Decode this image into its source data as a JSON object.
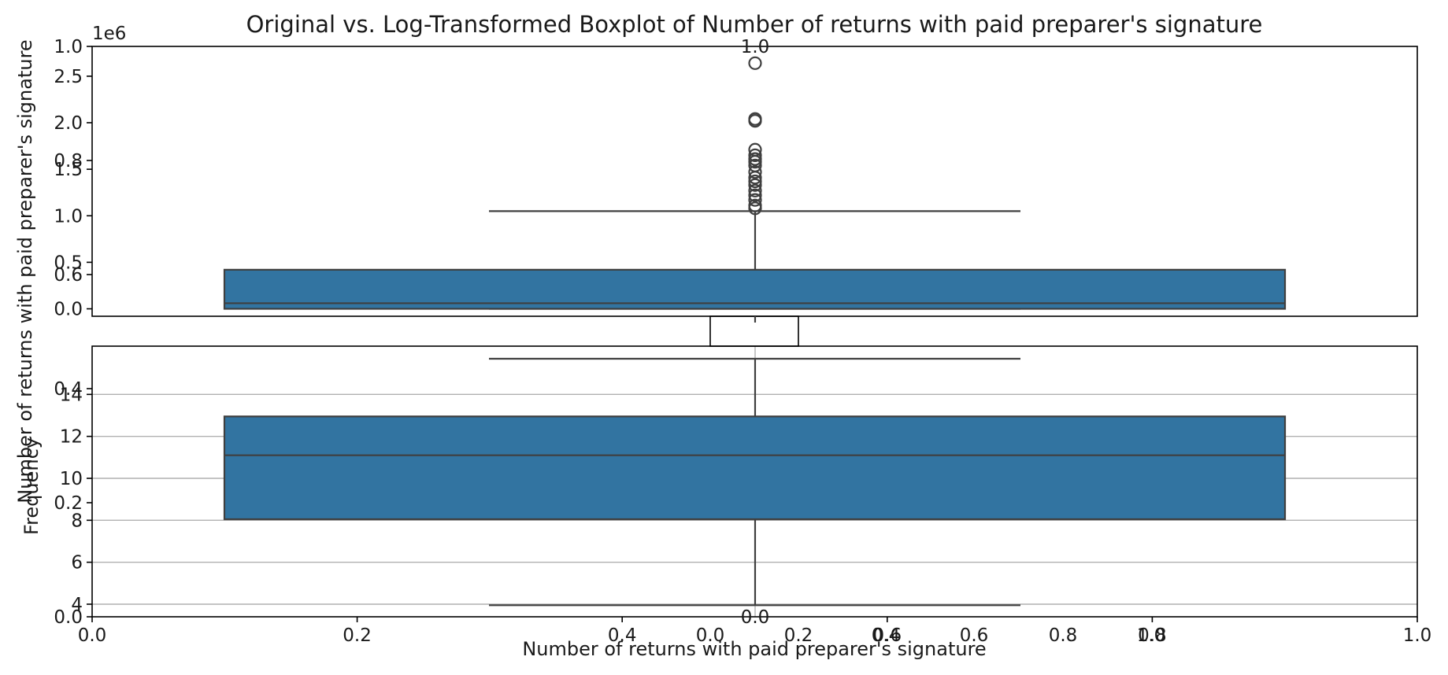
{
  "chart_data": [
    {
      "type": "boxplot",
      "panel": "top",
      "title": "Original vs. Log-Transformed Boxplot of Number of returns with paid preparer's signature",
      "ylabel": "Number of returns with paid preparer's signature",
      "y_offset_label": "1e6",
      "ylim": [
        -0.08,
        2.82
      ],
      "yticks": [
        0.0,
        0.5,
        1.0,
        1.5,
        2.0,
        2.5
      ],
      "ytick_labels": [
        "0.0",
        "0.5",
        "1.0",
        "1.5",
        "2.0",
        "2.5"
      ],
      "box": {
        "q1": 0.0,
        "median": 0.06,
        "q3": 0.42,
        "whisker_low": 0.0,
        "whisker_high": 1.05
      },
      "fliers": [
        1.08,
        1.11,
        1.17,
        1.22,
        1.27,
        1.33,
        1.37,
        1.41,
        1.47,
        1.54,
        1.58,
        1.61,
        1.65,
        1.71,
        2.02,
        2.04,
        2.64
      ]
    },
    {
      "type": "boxplot",
      "panel": "bottom",
      "ylabel": "Frequency",
      "xlabel": "Number of returns with paid preparer's signature",
      "ylim": [
        3.4,
        16.3
      ],
      "yticks": [
        4,
        6,
        8,
        10,
        12,
        14
      ],
      "ytick_labels": [
        "4",
        "6",
        "8",
        "10",
        "12",
        "14"
      ],
      "grid": true,
      "box": {
        "q1": 8.05,
        "median": 11.1,
        "q3": 12.95,
        "whisker_low": 3.95,
        "whisker_high": 15.7
      }
    },
    {
      "type": "axes-overlay",
      "panel": "background",
      "xlim": [
        0.0,
        1.0
      ],
      "ylim": [
        0.0,
        1.0
      ],
      "xticks": [
        0.0,
        0.2,
        0.4,
        0.6,
        0.8,
        1.0
      ],
      "xtick_labels": [
        "0.0",
        "0.2",
        "0.4",
        "0.6",
        "0.8",
        "1.0"
      ],
      "yticks": [
        0.0,
        0.2,
        0.4,
        0.6,
        0.8,
        1.0
      ],
      "ytick_labels": [
        "0.0",
        "0.2",
        "0.4",
        "0.6",
        "0.8",
        "1.0"
      ]
    },
    {
      "type": "axes-overlay",
      "panel": "inset",
      "xticks": [
        0.0,
        0.2,
        0.4,
        0.6,
        0.8,
        1.0
      ],
      "xtick_labels": [
        "0.0",
        "0.2",
        "0.4",
        "0.6",
        "0.8",
        "1.0"
      ],
      "yticks": [
        0.0,
        1.0
      ],
      "ytick_labels": [
        "0.0",
        "1.0"
      ]
    }
  ]
}
